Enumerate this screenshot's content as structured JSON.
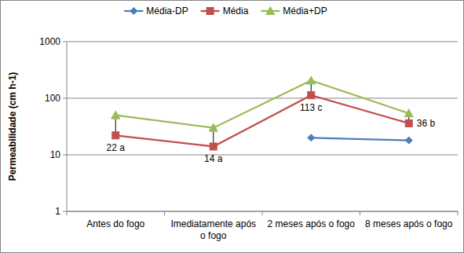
{
  "chart_data": {
    "type": "line",
    "y_label": "Permeabilidade (cm h-1)",
    "categories": [
      "Antes do fogo",
      "Imediatamente após o fogo",
      "2 meses após o fogo",
      "8 meses após o fogo"
    ],
    "series": [
      {
        "name": "Média-DP",
        "color": "#4a7ebb",
        "marker": "diamond",
        "line_style": "solid",
        "values": [
          null,
          null,
          20,
          18
        ]
      },
      {
        "name": "Média",
        "color": "#c0504d",
        "marker": "square",
        "line_style": "solid",
        "values": [
          22,
          14,
          113,
          36
        ],
        "value_labels": [
          "22 a",
          "14 a",
          "113 c",
          "36 b"
        ],
        "data_labels": true
      },
      {
        "name": "Média+DP",
        "color": "#9bbb59",
        "marker": "triangle",
        "line_style": "solid",
        "values": [
          50,
          30,
          205,
          54
        ]
      }
    ],
    "ylim": [
      1,
      1000
    ],
    "yticks": [
      1,
      10,
      100,
      1000
    ],
    "log": "y",
    "grid": true,
    "legend": "top"
  }
}
